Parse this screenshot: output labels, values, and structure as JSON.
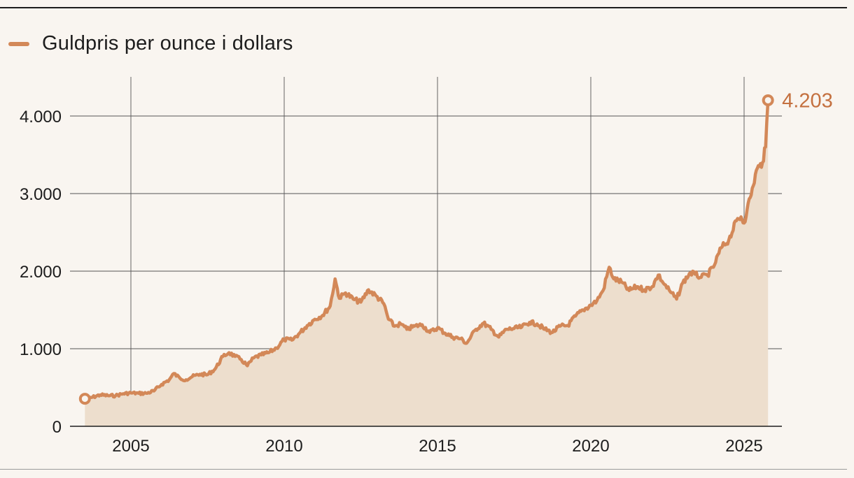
{
  "colors": {
    "line": "#d38858",
    "area": "#eddecd",
    "grid": "#555555",
    "axis": "#1d1d1d",
    "last_label": "#c4703f"
  },
  "legend": {
    "label": "Guldpris per ounce i dollars"
  },
  "last_value_label": "4.203",
  "chart_data": {
    "type": "area",
    "title": "",
    "xlabel": "",
    "ylabel": "",
    "xlim": [
      2003.5,
      2025.8
    ],
    "ylim": [
      0,
      4500
    ],
    "xticks": [
      2005,
      2010,
      2015,
      2020,
      2025
    ],
    "xtick_labels": [
      "2005",
      "2010",
      "2015",
      "2020",
      "2025"
    ],
    "yticks": [
      0,
      1000,
      2000,
      3000,
      4000
    ],
    "ytick_labels": [
      "0",
      "1.000",
      "2.000",
      "3.000",
      "4.000"
    ],
    "grid": {
      "vertical": true,
      "horizontal": true
    },
    "legend_position": "top-left",
    "series": [
      {
        "name": "Guldpris per ounce i dollars",
        "x": [
          2003.5,
          2003.75,
          2004.0,
          2004.25,
          2004.5,
          2004.75,
          2005.0,
          2005.25,
          2005.5,
          2005.75,
          2006.0,
          2006.25,
          2006.4,
          2006.6,
          2006.8,
          2007.0,
          2007.25,
          2007.5,
          2007.75,
          2008.0,
          2008.2,
          2008.4,
          2008.6,
          2008.8,
          2009.0,
          2009.25,
          2009.5,
          2009.75,
          2010.0,
          2010.25,
          2010.5,
          2010.75,
          2011.0,
          2011.25,
          2011.5,
          2011.66,
          2011.8,
          2012.0,
          2012.25,
          2012.5,
          2012.75,
          2013.0,
          2013.25,
          2013.4,
          2013.6,
          2013.8,
          2014.0,
          2014.25,
          2014.5,
          2014.75,
          2015.0,
          2015.25,
          2015.5,
          2015.75,
          2015.95,
          2016.25,
          2016.5,
          2016.75,
          2017.0,
          2017.25,
          2017.5,
          2017.75,
          2018.0,
          2018.25,
          2018.5,
          2018.75,
          2019.0,
          2019.25,
          2019.5,
          2019.75,
          2020.0,
          2020.2,
          2020.4,
          2020.6,
          2020.75,
          2021.0,
          2021.25,
          2021.5,
          2021.75,
          2022.0,
          2022.2,
          2022.4,
          2022.6,
          2022.8,
          2023.0,
          2023.25,
          2023.4,
          2023.6,
          2023.8,
          2024.0,
          2024.25,
          2024.5,
          2024.75,
          2024.9,
          2025.0,
          2025.1,
          2025.2,
          2025.3,
          2025.4,
          2025.5,
          2025.6,
          2025.7,
          2025.78
        ],
        "y": [
          355,
          375,
          405,
          395,
          395,
          420,
          430,
          425,
          425,
          455,
          540,
          600,
          680,
          620,
          600,
          640,
          670,
          665,
          740,
          900,
          950,
          900,
          860,
          780,
          880,
          920,
          950,
          1010,
          1120,
          1110,
          1200,
          1300,
          1380,
          1430,
          1550,
          1900,
          1650,
          1720,
          1640,
          1600,
          1760,
          1680,
          1580,
          1380,
          1290,
          1320,
          1250,
          1290,
          1310,
          1210,
          1270,
          1200,
          1150,
          1130,
          1070,
          1250,
          1330,
          1250,
          1150,
          1250,
          1260,
          1280,
          1340,
          1320,
          1250,
          1210,
          1290,
          1300,
          1420,
          1500,
          1560,
          1620,
          1750,
          2050,
          1900,
          1860,
          1750,
          1800,
          1760,
          1800,
          1950,
          1830,
          1730,
          1640,
          1850,
          1980,
          1960,
          1920,
          1950,
          2050,
          2300,
          2400,
          2650,
          2700,
          2620,
          2800,
          2950,
          3100,
          3300,
          3350,
          3400,
          3600,
          4203
        ]
      }
    ],
    "annotations": [
      {
        "text": "4.203",
        "x": 2025.78,
        "y": 4203
      }
    ]
  }
}
